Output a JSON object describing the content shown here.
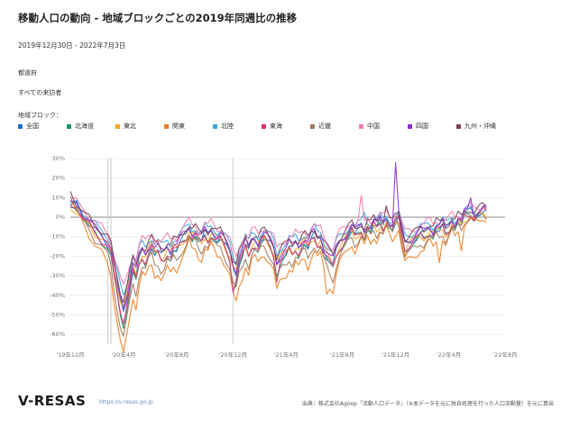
{
  "header": {
    "title": "移動人口の動向 - 地域ブロックごとの2019年同週比の推移",
    "period": "2019年12月30日 - 2022年7月3日",
    "filter_region": "都道府",
    "filter_category": "すべての来訪者"
  },
  "legend": {
    "title": "地域ブロック：",
    "items": [
      {
        "label": "全国",
        "color": "#1f6fbf"
      },
      {
        "label": "北海道",
        "color": "#1f8f6b"
      },
      {
        "label": "東北",
        "color": "#f5a623"
      },
      {
        "label": "関東",
        "color": "#f07c1c"
      },
      {
        "label": "北陸",
        "color": "#39a9e0"
      },
      {
        "label": "東海",
        "color": "#e0317a"
      },
      {
        "label": "近畿",
        "color": "#a0785a"
      },
      {
        "label": "中国",
        "color": "#f27ab0"
      },
      {
        "label": "四国",
        "color": "#8a2fc9"
      },
      {
        "label": "九州・沖縄",
        "color": "#7a3f55"
      }
    ]
  },
  "chart_data": {
    "type": "line",
    "ylim": [
      -65,
      30
    ],
    "y_ticks": [
      30,
      20,
      10,
      0,
      -10,
      -20,
      -30,
      -40,
      -50,
      -60
    ],
    "y_tick_labels": [
      "30%",
      "20%",
      "10%",
      "0%",
      "-10%",
      "-20%",
      "-30%",
      "-40%",
      "-50%",
      "-60%"
    ],
    "x_tick_labels": [
      "'19年12月",
      "'20年4月",
      "'20年8月",
      "'20年12月",
      "'21年4月",
      "'21年8月",
      "'21年12月",
      "'22年4月",
      "'22年8月"
    ],
    "x_tick_weeks": [
      0,
      17,
      34,
      52,
      69,
      87,
      104,
      121,
      139
    ],
    "vertical_markers_weeks": [
      12,
      13,
      52
    ],
    "base_series": [
      [
        0,
        7
      ],
      [
        2,
        6
      ],
      [
        4,
        1
      ],
      [
        6,
        -3
      ],
      [
        8,
        -7
      ],
      [
        10,
        -10
      ],
      [
        12,
        -14
      ],
      [
        13,
        -18
      ],
      [
        14,
        -28
      ],
      [
        15,
        -36
      ],
      [
        16,
        -44
      ],
      [
        17,
        -49
      ],
      [
        18,
        -42
      ],
      [
        19,
        -34
      ],
      [
        20,
        -26
      ],
      [
        21,
        -30
      ],
      [
        22,
        -22
      ],
      [
        23,
        -18
      ],
      [
        24,
        -20
      ],
      [
        25,
        -16
      ],
      [
        26,
        -14
      ],
      [
        27,
        -18
      ],
      [
        28,
        -17
      ],
      [
        29,
        -20
      ],
      [
        30,
        -19
      ],
      [
        31,
        -16
      ],
      [
        32,
        -18
      ],
      [
        33,
        -15
      ],
      [
        34,
        -16
      ],
      [
        35,
        -13
      ],
      [
        36,
        -11
      ],
      [
        37,
        -9
      ],
      [
        38,
        -6
      ],
      [
        39,
        -9
      ],
      [
        40,
        -8
      ],
      [
        41,
        -11
      ],
      [
        42,
        -12
      ],
      [
        43,
        -8
      ],
      [
        44,
        -10
      ],
      [
        45,
        -7
      ],
      [
        46,
        -9
      ],
      [
        47,
        -11
      ],
      [
        48,
        -10
      ],
      [
        49,
        -13
      ],
      [
        50,
        -16
      ],
      [
        51,
        -19
      ],
      [
        52,
        -26
      ],
      [
        53,
        -29
      ],
      [
        54,
        -22
      ],
      [
        55,
        -19
      ],
      [
        56,
        -14
      ],
      [
        57,
        -18
      ],
      [
        58,
        -13
      ],
      [
        59,
        -12
      ],
      [
        60,
        -14
      ],
      [
        61,
        -11
      ],
      [
        62,
        -10
      ],
      [
        63,
        -12
      ],
      [
        64,
        -14
      ],
      [
        65,
        -17
      ],
      [
        66,
        -25
      ],
      [
        67,
        -21
      ],
      [
        68,
        -19
      ],
      [
        69,
        -18
      ],
      [
        70,
        -15
      ],
      [
        71,
        -17
      ],
      [
        72,
        -14
      ],
      [
        73,
        -16
      ],
      [
        74,
        -13
      ],
      [
        75,
        -12
      ],
      [
        76,
        -15
      ],
      [
        77,
        -11
      ],
      [
        78,
        -9
      ],
      [
        79,
        -12
      ],
      [
        80,
        -11
      ],
      [
        81,
        -16
      ],
      [
        82,
        -19
      ],
      [
        83,
        -22
      ],
      [
        84,
        -24
      ],
      [
        85,
        -18
      ],
      [
        86,
        -14
      ],
      [
        87,
        -12
      ],
      [
        88,
        -10
      ],
      [
        89,
        -8
      ],
      [
        90,
        -6
      ],
      [
        91,
        -9
      ],
      [
        92,
        -7
      ],
      [
        93,
        -5
      ],
      [
        94,
        -8
      ],
      [
        95,
        -4
      ],
      [
        96,
        -6
      ],
      [
        97,
        -3
      ],
      [
        98,
        -5
      ],
      [
        99,
        -2
      ],
      [
        100,
        -4
      ],
      [
        101,
        -1
      ],
      [
        102,
        -3
      ],
      [
        103,
        -5
      ],
      [
        104,
        -2
      ],
      [
        105,
        0
      ],
      [
        106,
        -8
      ],
      [
        107,
        -14
      ],
      [
        108,
        -13
      ],
      [
        109,
        -12
      ],
      [
        110,
        -11
      ],
      [
        111,
        -10
      ],
      [
        112,
        -8
      ],
      [
        113,
        -9
      ],
      [
        114,
        -7
      ],
      [
        115,
        -6
      ],
      [
        116,
        -8
      ],
      [
        117,
        -5
      ],
      [
        118,
        -6
      ],
      [
        119,
        -4
      ],
      [
        120,
        -7
      ],
      [
        121,
        -5
      ],
      [
        122,
        -2
      ],
      [
        123,
        -4
      ],
      [
        124,
        -1
      ],
      [
        125,
        -3
      ],
      [
        126,
        1
      ],
      [
        127,
        2
      ],
      [
        128,
        3
      ],
      [
        129,
        1
      ],
      [
        130,
        2
      ],
      [
        131,
        3
      ],
      [
        132,
        4
      ],
      [
        133,
        3
      ]
    ],
    "series": [
      {
        "name": "全国",
        "offset": 0,
        "amp": 1.0,
        "spikes": []
      },
      {
        "name": "北海道",
        "offset": -1,
        "amp": 1.1,
        "spikes": [
          [
            52,
            -6
          ]
        ]
      },
      {
        "name": "東北",
        "offset": -2,
        "amp": 0.9,
        "spikes": [
          [
            107,
            -4
          ]
        ]
      },
      {
        "name": "関東",
        "offset": -5,
        "amp": 1.35,
        "spikes": [
          [
            82,
            -8
          ],
          [
            118,
            -8
          ],
          [
            125,
            -6
          ]
        ]
      },
      {
        "name": "北陸",
        "offset": 2,
        "amp": 0.85,
        "spikes": [
          [
            94,
            8
          ]
        ]
      },
      {
        "name": "東海",
        "offset": -1,
        "amp": 1.05,
        "spikes": [
          [
            52,
            -8
          ],
          [
            66,
            -4
          ]
        ]
      },
      {
        "name": "近畿",
        "offset": -3,
        "amp": 1.2,
        "spikes": [
          [
            104,
            6
          ]
        ]
      },
      {
        "name": "中国",
        "offset": 3,
        "amp": 0.8,
        "spikes": [
          [
            93,
            10
          ]
        ]
      },
      {
        "name": "四国",
        "offset": 1,
        "amp": 0.95,
        "spikes": [
          [
            104,
            28
          ],
          [
            128,
            6
          ]
        ]
      },
      {
        "name": "九州・沖縄",
        "offset": 2,
        "amp": 0.9,
        "spikes": [
          [
            101,
            6
          ]
        ]
      }
    ]
  },
  "footer": {
    "brand": "V-RESAS",
    "url": "https://v-resas.go.jp",
    "source": "出典：株式会社Agoop「流動人口データ」（※本データを元に独自処理を行った人口流動量）を元に算出"
  }
}
